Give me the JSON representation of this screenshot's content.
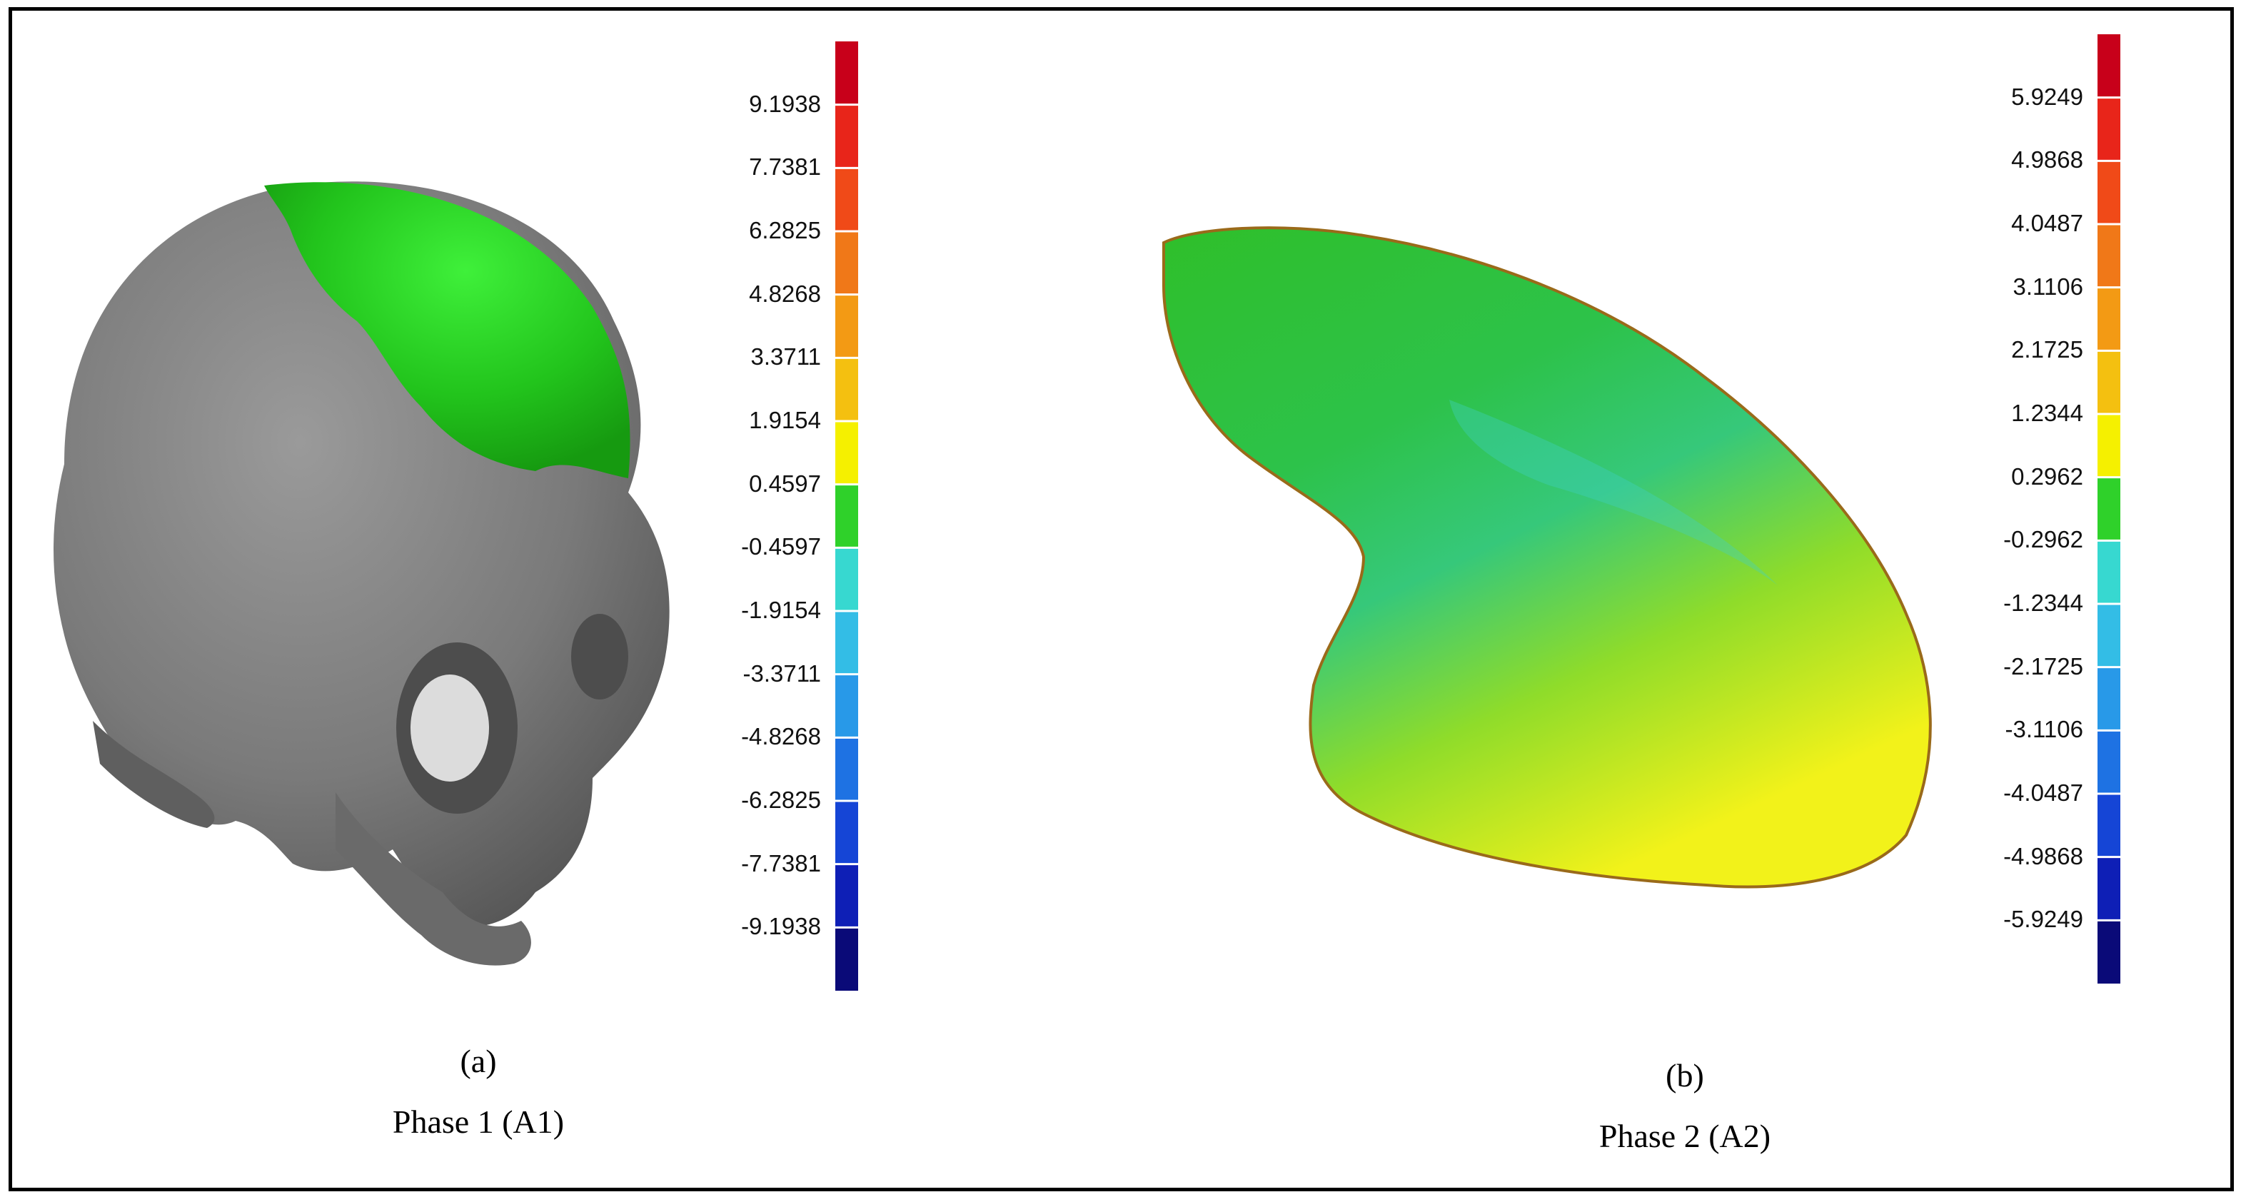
{
  "panel_a": {
    "letter": "(a)",
    "caption": "Phase 1 (A1)",
    "scale_labels": [
      "9.1938",
      "7.7381",
      "6.2825",
      "4.8268",
      "3.3711",
      "1.9154",
      "0.4597",
      "-0.4597",
      "-1.9154",
      "-3.3711",
      "-4.8268",
      "-6.2825",
      "-7.7381",
      "-9.1938"
    ]
  },
  "panel_b": {
    "letter": "(b)",
    "caption": "Phase 2 (A2)",
    "scale_labels": [
      "5.9249",
      "4.9868",
      "4.0487",
      "3.1106",
      "2.1725",
      "1.2344",
      "0.2962",
      "-0.2962",
      "-1.2344",
      "-2.1725",
      "-3.1106",
      "-4.0487",
      "-4.9868",
      "-5.9249"
    ]
  },
  "scale_colors": [
    "#c8001a",
    "#e8251a",
    "#f04a18",
    "#f07818",
    "#f39a14",
    "#f4c010",
    "#f5f000",
    "#2fd12a",
    "#37d8d0",
    "#33bde6",
    "#2899e8",
    "#1e72e3",
    "#1545d6",
    "#0e1fb6",
    "#0a0a78"
  ]
}
